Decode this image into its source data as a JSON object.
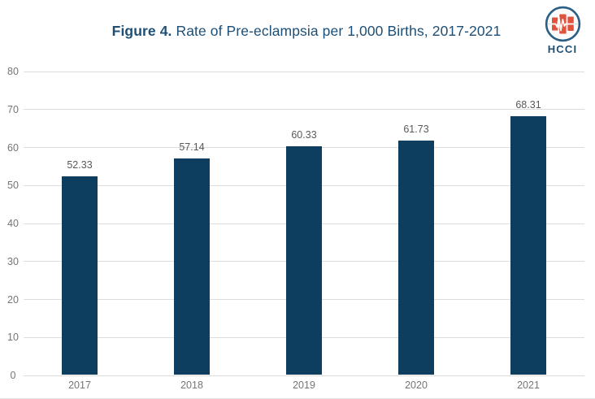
{
  "header": {
    "title_bold": "Figure 4.",
    "title_rest": " Rate of Pre-eclampsia per 1,000 Births, 2017-2021"
  },
  "logo": {
    "wordmark": "HCCI",
    "icon": "heartbeat-bars-circle-icon"
  },
  "colors": {
    "bar": "#0d3e60",
    "title": "#1d4f76",
    "gridline": "#dcdcdc",
    "axis_label": "#757575",
    "value_label": "#595959",
    "logo_ring": "#2b5f85",
    "logo_bars": "#e1523c"
  },
  "chart_data": {
    "type": "bar",
    "title": "Figure 4. Rate of Pre-eclampsia per 1,000 Births, 2017-2021",
    "categories": [
      "2017",
      "2018",
      "2019",
      "2020",
      "2021"
    ],
    "values": [
      52.33,
      57.14,
      60.33,
      61.73,
      68.31
    ],
    "value_labels": [
      "52.33",
      "57.14",
      "60.33",
      "61.73",
      "68.31"
    ],
    "xlabel": "",
    "ylabel": "",
    "ylim": [
      0,
      80
    ],
    "ytick_step": 10,
    "ytick_labels": [
      "0",
      "10",
      "20",
      "30",
      "40",
      "50",
      "60",
      "70",
      "80"
    ],
    "grid": true,
    "legend": "none"
  }
}
